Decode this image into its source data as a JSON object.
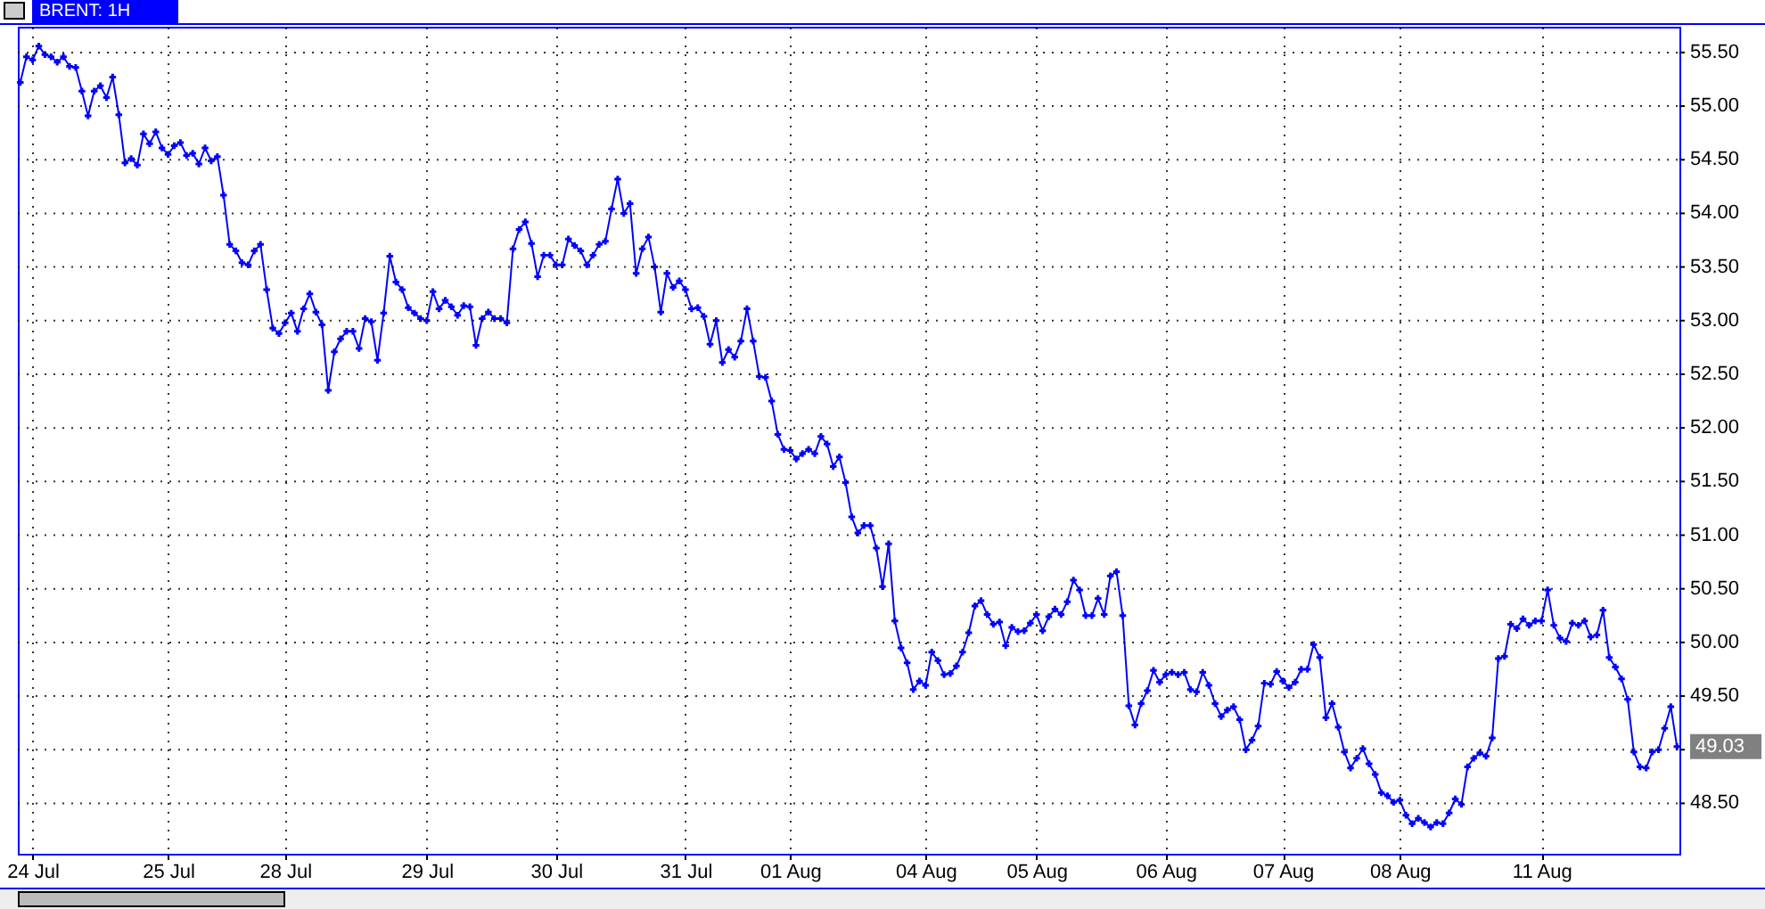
{
  "chart_data": {
    "type": "line",
    "title": "BRENT: 1H",
    "categories": [
      null,
      null,
      "24 Jul",
      null,
      null,
      null,
      null,
      null,
      null,
      null,
      null,
      null,
      null,
      null,
      null,
      null,
      null,
      null,
      null,
      null,
      null,
      null,
      null,
      null,
      "25 Jul",
      null,
      null,
      null,
      null,
      null,
      null,
      null,
      null,
      null,
      null,
      null,
      null,
      null,
      null,
      null,
      null,
      null,
      null,
      "28 Jul",
      null,
      null,
      null,
      null,
      null,
      null,
      null,
      null,
      null,
      null,
      null,
      null,
      null,
      null,
      null,
      null,
      null,
      null,
      null,
      null,
      null,
      null,
      "29 Jul",
      null,
      null,
      null,
      null,
      null,
      null,
      null,
      null,
      null,
      null,
      null,
      null,
      null,
      null,
      null,
      null,
      null,
      null,
      null,
      null,
      "30 Jul",
      null,
      null,
      null,
      null,
      null,
      null,
      null,
      null,
      null,
      null,
      null,
      null,
      null,
      null,
      null,
      null,
      null,
      null,
      null,
      null,
      "31 Jul",
      null,
      null,
      null,
      null,
      null,
      null,
      null,
      null,
      null,
      null,
      null,
      null,
      null,
      null,
      null,
      null,
      "01 Aug",
      null,
      null,
      null,
      null,
      null,
      null,
      null,
      null,
      null,
      null,
      null,
      null,
      null,
      null,
      null,
      null,
      null,
      null,
      null,
      null,
      null,
      "04 Aug",
      null,
      null,
      null,
      null,
      null,
      null,
      null,
      null,
      null,
      null,
      null,
      null,
      null,
      null,
      null,
      null,
      null,
      "05 Aug",
      null,
      null,
      null,
      null,
      null,
      null,
      null,
      null,
      null,
      null,
      null,
      null,
      null,
      null,
      null,
      null,
      null,
      null,
      null,
      null,
      "06 Aug",
      null,
      null,
      null,
      null,
      null,
      null,
      null,
      null,
      null,
      null,
      null,
      null,
      null,
      null,
      null,
      null,
      null,
      null,
      "07 Aug",
      null,
      null,
      null,
      null,
      null,
      null,
      null,
      null,
      null,
      null,
      null,
      null,
      null,
      null,
      null,
      null,
      null,
      null,
      "08 Aug",
      null,
      null,
      null,
      null,
      null,
      null,
      null,
      null,
      null,
      null,
      null,
      null,
      null,
      null,
      null,
      null,
      null,
      null,
      null,
      null,
      null,
      null,
      "11 Aug",
      null,
      null,
      null,
      null,
      null,
      null,
      null,
      null,
      null,
      null,
      null,
      null,
      null,
      null,
      null,
      null,
      null,
      null,
      null,
      null,
      null,
      null
    ],
    "series": [
      {
        "color": "#0000ff",
        "values": [
          55.22,
          55.46,
          55.43,
          55.56,
          55.48,
          55.46,
          55.41,
          55.46,
          55.37,
          55.36,
          55.14,
          54.91,
          55.14,
          55.19,
          55.08,
          55.27,
          54.92,
          54.47,
          54.51,
          54.45,
          54.74,
          54.65,
          54.76,
          54.61,
          54.55,
          54.63,
          54.66,
          54.54,
          54.56,
          54.46,
          54.61,
          54.49,
          54.53,
          54.17,
          53.71,
          53.65,
          53.54,
          53.52,
          53.65,
          53.71,
          53.29,
          52.93,
          52.88,
          52.98,
          53.07,
          52.9,
          53.11,
          53.25,
          53.08,
          52.96,
          52.35,
          52.71,
          52.83,
          52.9,
          52.9,
          52.74,
          53.02,
          52.99,
          52.63,
          53.07,
          53.6,
          53.36,
          53.29,
          53.12,
          53.07,
          53.02,
          53,
          53.27,
          53.11,
          53.19,
          53.13,
          53.05,
          53.14,
          53.13,
          52.77,
          53.02,
          53.08,
          53.02,
          53.02,
          52.98,
          53.67,
          53.85,
          53.92,
          53.72,
          53.41,
          53.61,
          53.61,
          53.52,
          53.52,
          53.76,
          53.7,
          53.65,
          53.52,
          53.61,
          53.71,
          53.74,
          54.04,
          54.32,
          54,
          54.09,
          53.44,
          53.67,
          53.78,
          53.5,
          53.08,
          53.44,
          53.31,
          53.37,
          53.29,
          53.11,
          53.12,
          53.04,
          52.78,
          53,
          52.61,
          52.73,
          52.66,
          52.81,
          53.11,
          52.81,
          52.48,
          52.47,
          52.25,
          51.94,
          51.8,
          51.79,
          51.71,
          51.76,
          51.8,
          51.76,
          51.92,
          51.85,
          51.64,
          51.73,
          51.49,
          51.17,
          51.02,
          51.09,
          51.09,
          50.88,
          50.52,
          50.92,
          50.2,
          49.95,
          49.81,
          49.56,
          49.64,
          49.6,
          49.91,
          49.83,
          49.7,
          49.71,
          49.78,
          49.91,
          50.09,
          50.34,
          50.39,
          50.26,
          50.17,
          50.19,
          49.97,
          50.14,
          50.1,
          50.11,
          50.18,
          50.26,
          50.11,
          50.24,
          50.31,
          50.26,
          50.38,
          50.58,
          50.49,
          50.25,
          50.25,
          50.41,
          50.26,
          50.62,
          50.66,
          50.25,
          49.41,
          49.23,
          49.43,
          49.55,
          49.74,
          49.63,
          49.7,
          49.72,
          49.7,
          49.72,
          49.56,
          49.54,
          49.72,
          49.6,
          49.43,
          49.31,
          49.37,
          49.4,
          49.28,
          49,
          49.09,
          49.22,
          49.62,
          49.61,
          49.73,
          49.64,
          49.58,
          49.63,
          49.75,
          49.75,
          49.98,
          49.86,
          49.3,
          49.43,
          49.21,
          48.98,
          48.83,
          48.92,
          49.01,
          48.87,
          48.77,
          48.6,
          48.57,
          48.51,
          48.53,
          48.39,
          48.31,
          48.36,
          48.32,
          48.28,
          48.32,
          48.31,
          48.41,
          48.54,
          48.49,
          48.84,
          48.92,
          48.97,
          48.94,
          49.11,
          49.85,
          49.87,
          50.17,
          50.13,
          50.22,
          50.16,
          50.2,
          50.2,
          50.49,
          50.16,
          50.04,
          50.01,
          50.18,
          50.16,
          50.2,
          50.05,
          50.07,
          50.3,
          49.86,
          49.77,
          49.66,
          49.47,
          48.98,
          48.84,
          48.83,
          48.98,
          49,
          49.2,
          49.4,
          49.03
        ]
      }
    ],
    "ylim": [
      48.03,
      55.74
    ],
    "yticks": [
      {
        "value": 48.5,
        "label": "48.50"
      },
      {
        "value": 49,
        "label": null
      },
      {
        "value": 49.5,
        "label": "49.50"
      },
      {
        "value": 50,
        "label": "50.00"
      },
      {
        "value": 50.5,
        "label": "50.50"
      },
      {
        "value": 51,
        "label": "51.00"
      },
      {
        "value": 51.5,
        "label": "51.50"
      },
      {
        "value": 52,
        "label": "52.00"
      },
      {
        "value": 52.5,
        "label": "52.50"
      },
      {
        "value": 53,
        "label": "53.00"
      },
      {
        "value": 53.5,
        "label": "53.50"
      },
      {
        "value": 54,
        "label": "54.00"
      },
      {
        "value": 54.5,
        "label": "54.50"
      },
      {
        "value": 55,
        "label": "55.00"
      },
      {
        "value": 55.5,
        "label": "55.50"
      }
    ],
    "annotations": [
      "49.03"
    ],
    "grid": true,
    "marker": "cross",
    "line_style": "solid"
  }
}
